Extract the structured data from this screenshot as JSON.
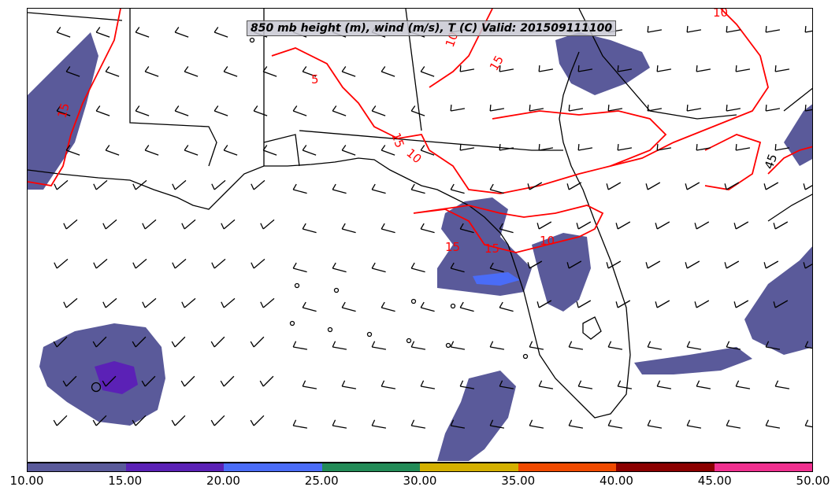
{
  "title": "850 mb height (m), wind (m/s), T (C) Valid: 201509111100",
  "colorbar": {
    "ticks": [
      "10.00",
      "15.00",
      "20.00",
      "25.00",
      "30.00",
      "35.00",
      "40.00",
      "45.00",
      "50.00"
    ],
    "colors": [
      "#5a5a9a",
      "#5b21b6",
      "#4a6cf7",
      "#228b57",
      "#d4b000",
      "#f04a00",
      "#8b0000",
      "#f0308f"
    ]
  },
  "contour_labels": [
    "15",
    "10",
    "15",
    "10",
    "5",
    "10",
    "15",
    "15",
    "10",
    "15",
    "45"
  ],
  "colors": {
    "contour": "#ff0000",
    "precip_shade": "#5a5a9a",
    "precip_heavy": "#5b21b6",
    "border": "#000000"
  }
}
